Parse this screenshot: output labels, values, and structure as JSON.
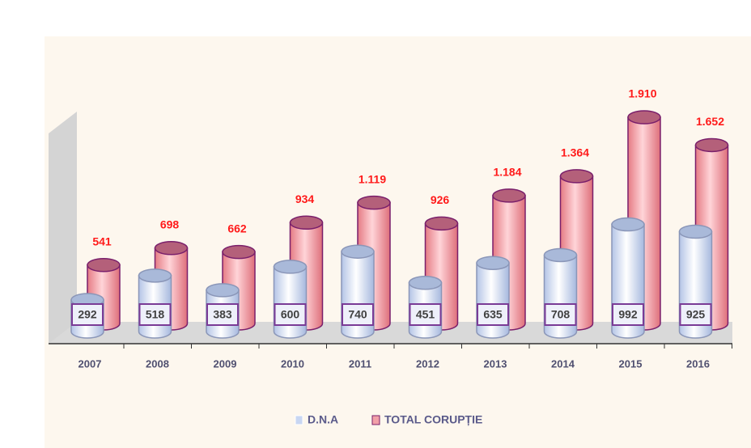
{
  "chart_data": {
    "type": "bar3d",
    "categories": [
      "2007",
      "2008",
      "2009",
      "2010",
      "2011",
      "2012",
      "2013",
      "2014",
      "2015",
      "2016"
    ],
    "series": [
      {
        "name": "D.N.A",
        "color": "#c8d6f2",
        "values": [
          292,
          518,
          383,
          600,
          740,
          451,
          635,
          708,
          992,
          925
        ]
      },
      {
        "name": "TOTAL CORUPȚIE",
        "color": "#f2a0a8",
        "values": [
          541,
          698,
          662,
          934,
          1119,
          926,
          1184,
          1364,
          1910,
          1652
        ],
        "value_labels": [
          "541",
          "698",
          "662",
          "934",
          "1.119",
          "926",
          "1.184",
          "1.364",
          "1.910",
          "1.652"
        ]
      }
    ]
  }
}
